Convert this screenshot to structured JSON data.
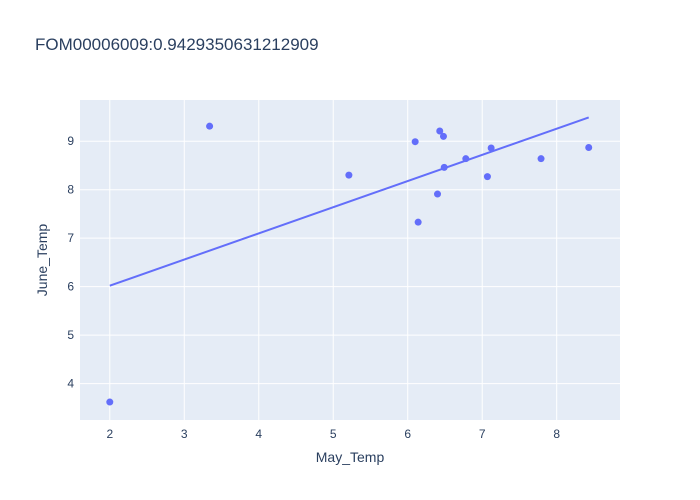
{
  "chart_data": {
    "type": "scatter",
    "title": "FOM00006009:0.9429350631212909",
    "xlabel": "May_Temp",
    "ylabel": "June_Temp",
    "xlim": [
      1.6,
      8.85
    ],
    "ylim": [
      3.25,
      9.85
    ],
    "xticks": [
      2,
      3,
      4,
      5,
      6,
      7,
      8
    ],
    "yticks": [
      4,
      5,
      6,
      7,
      8,
      9
    ],
    "points": [
      {
        "x": 2.0,
        "y": 3.62
      },
      {
        "x": 3.34,
        "y": 9.31
      },
      {
        "x": 5.21,
        "y": 8.3
      },
      {
        "x": 6.1,
        "y": 8.99
      },
      {
        "x": 6.14,
        "y": 7.33
      },
      {
        "x": 6.4,
        "y": 7.91
      },
      {
        "x": 6.43,
        "y": 9.21
      },
      {
        "x": 6.48,
        "y": 9.1
      },
      {
        "x": 6.49,
        "y": 8.46
      },
      {
        "x": 6.78,
        "y": 8.64
      },
      {
        "x": 7.07,
        "y": 8.27
      },
      {
        "x": 7.12,
        "y": 8.86
      },
      {
        "x": 7.79,
        "y": 8.64
      },
      {
        "x": 8.43,
        "y": 8.87
      }
    ],
    "trendline": {
      "x": [
        2.0,
        8.43
      ],
      "y": [
        6.02,
        9.49
      ]
    },
    "grid": true,
    "colors": {
      "plot_bg": "#e5ecf6",
      "grid": "#ffffff",
      "marker": "#636efa",
      "line": "#636efa",
      "text": "#2a3f5f"
    }
  }
}
